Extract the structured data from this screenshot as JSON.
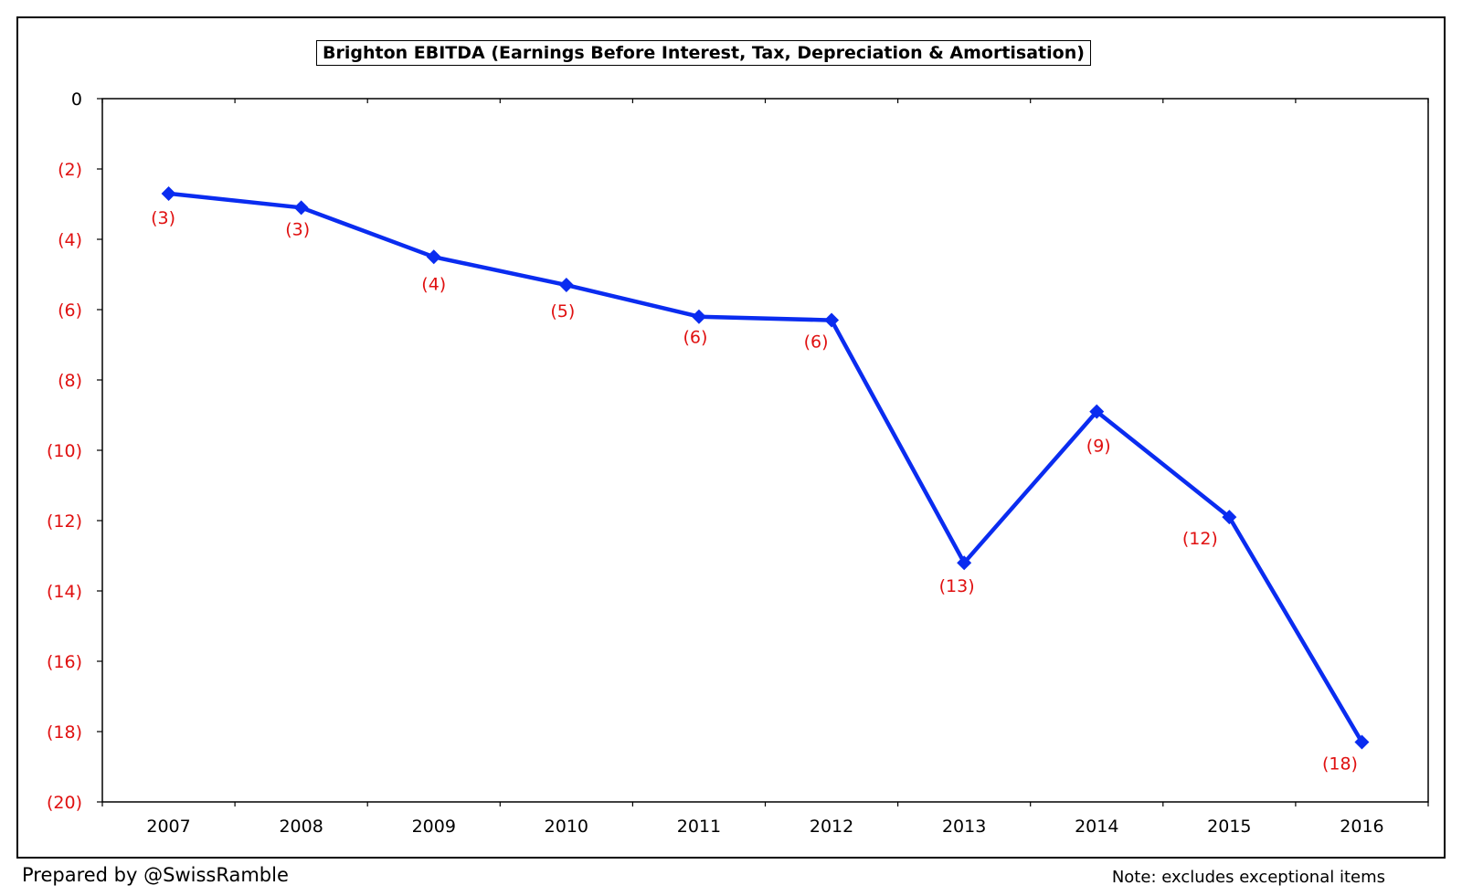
{
  "chart_data": {
    "type": "line",
    "title": "Brighton EBITDA (Earnings Before Interest, Tax, Depreciation & Amortisation)",
    "xlabel": "",
    "ylabel": "",
    "categories": [
      "2007",
      "2008",
      "2009",
      "2010",
      "2011",
      "2012",
      "2013",
      "2014",
      "2015",
      "2016"
    ],
    "series": [
      {
        "name": "EBITDA",
        "values": [
          -2.7,
          -3.1,
          -4.5,
          -5.3,
          -6.2,
          -6.3,
          -13.2,
          -8.9,
          -11.9,
          -18.3
        ]
      }
    ],
    "data_labels": [
      "(3)",
      "(3)",
      "(4)",
      "(5)",
      "(6)",
      "(6)",
      "(13)",
      "(9)",
      "(12)",
      "(18)"
    ],
    "ylim": [
      -20,
      0
    ],
    "yticks": [
      0,
      -2,
      -4,
      -6,
      -8,
      -10,
      -12,
      -14,
      -16,
      -18,
      -20
    ],
    "ytick_labels": [
      "0",
      "(2)",
      "(4)",
      "(6)",
      "(8)",
      "(10)",
      "(12)",
      "(14)",
      "(16)",
      "(18)",
      "(20)"
    ],
    "grid": false,
    "colors": {
      "line": "#0a2cf0",
      "negative_text": "#e01010",
      "axis": "#000000"
    }
  },
  "footer": {
    "credit": "Prepared by @SwissRamble",
    "note": "Note: excludes exceptional items"
  }
}
